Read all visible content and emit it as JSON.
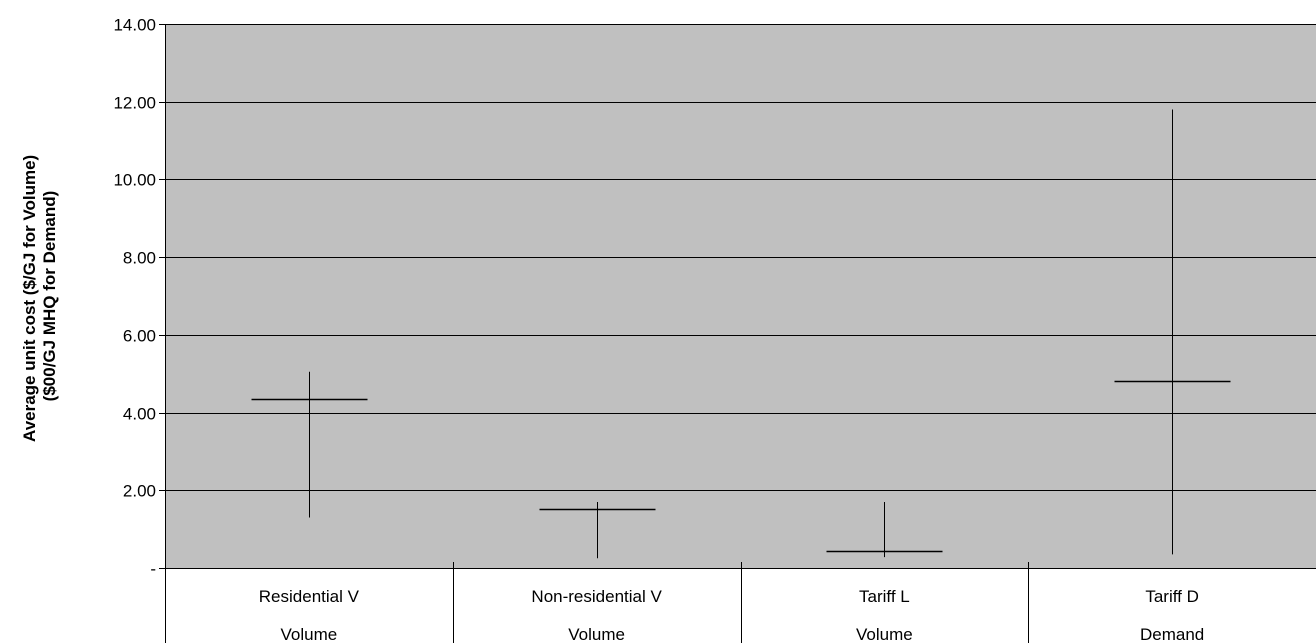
{
  "chart_data": {
    "type": "high-low",
    "title": "",
    "ylabel_lines": [
      "Average unit cost ($/GJ for Volume)",
      "($00/GJ MHQ for Demand)"
    ],
    "ylim": [
      0,
      14
    ],
    "yticks": [
      0,
      2,
      4,
      6,
      8,
      10,
      12,
      14
    ],
    "ytick_labels": [
      "-",
      "2.00",
      "4.00",
      "6.00",
      "8.00",
      "10.00",
      "12.00",
      "14.00"
    ],
    "grid": true,
    "categories": [
      {
        "label": "Residential V",
        "sublabel": "Volume"
      },
      {
        "label": "Non-residential V",
        "sublabel": "Volume"
      },
      {
        "label": "Tariff L",
        "sublabel": "Volume"
      },
      {
        "label": "Tariff D",
        "sublabel": "Demand"
      }
    ],
    "series": [
      {
        "high": [
          5.05,
          1.7,
          1.7,
          11.8
        ],
        "low": [
          1.3,
          0.25,
          0.28,
          0.35
        ],
        "average": [
          4.35,
          1.52,
          0.45,
          4.82
        ]
      }
    ],
    "colors": {
      "plot_background": "#c0c0c0",
      "gridline": "#000000",
      "marks": "#000000"
    }
  }
}
